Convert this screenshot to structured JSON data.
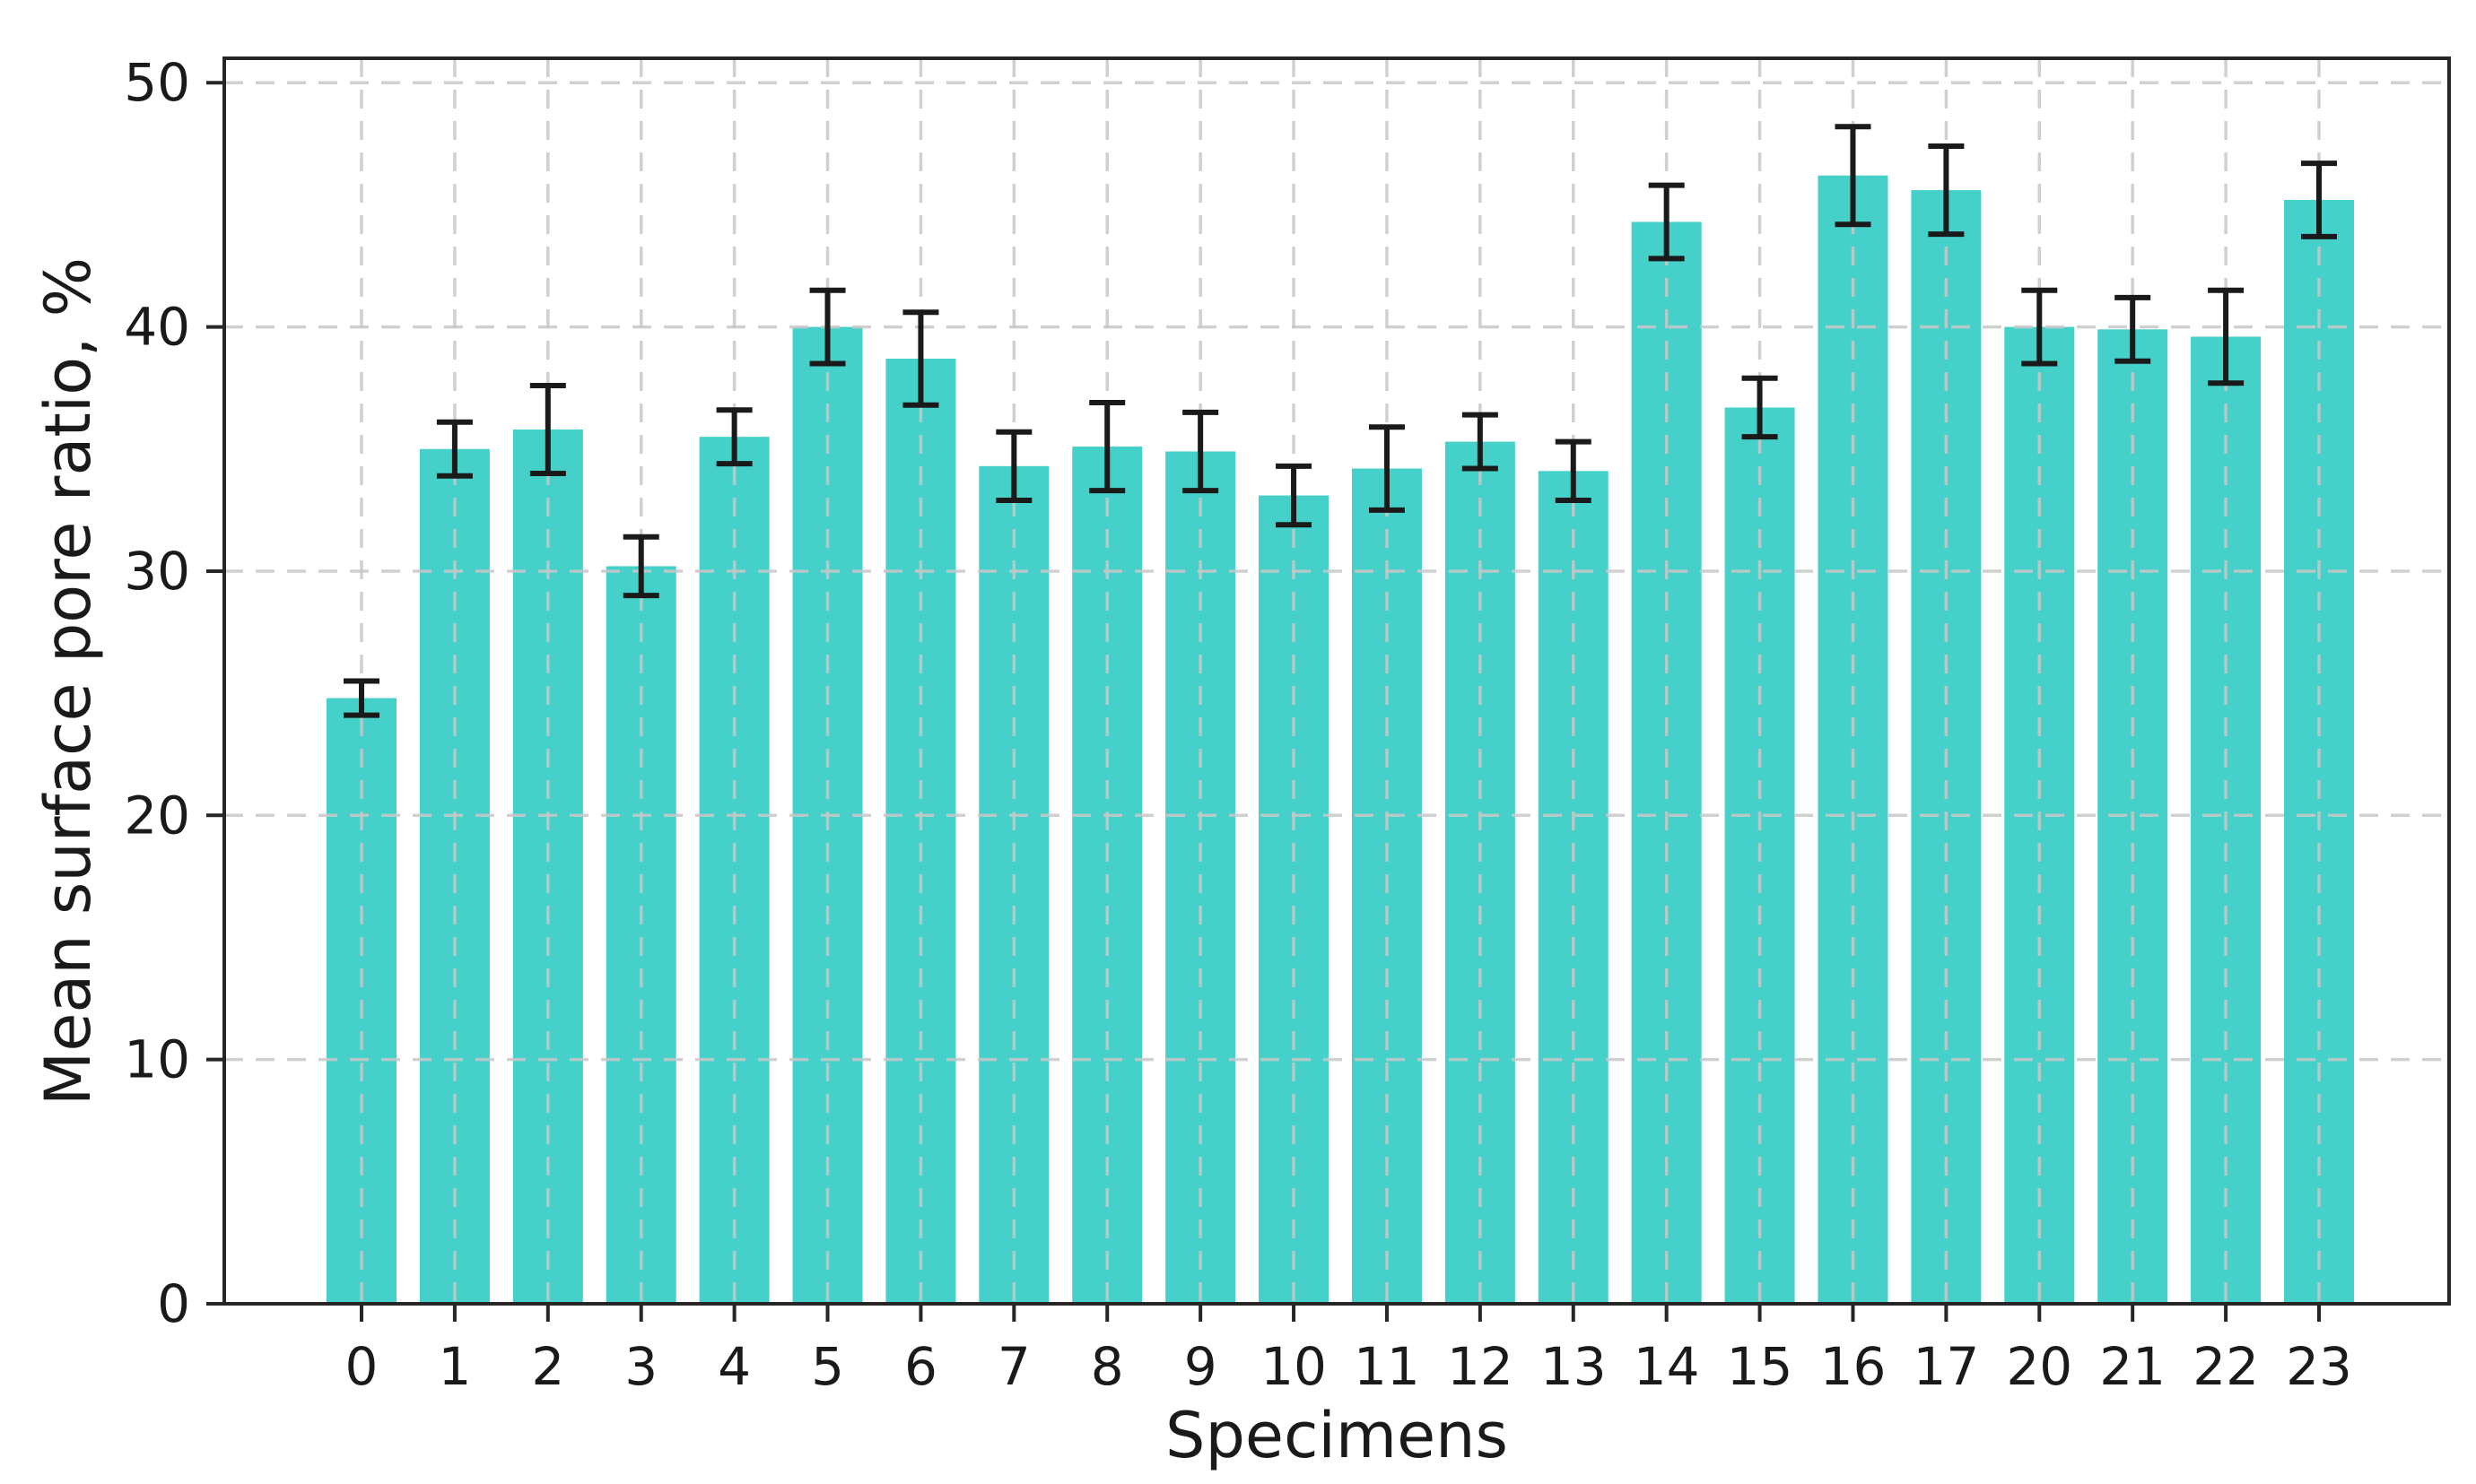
{
  "chart_data": {
    "type": "bar",
    "title": "",
    "xlabel": "Specimens",
    "ylabel": "Mean surface pore ratio, %",
    "categories": [
      "0",
      "1",
      "2",
      "3",
      "4",
      "5",
      "6",
      "7",
      "8",
      "9",
      "10",
      "11",
      "12",
      "13",
      "14",
      "15",
      "16",
      "17",
      "20",
      "21",
      "22",
      "23"
    ],
    "values": [
      24.8,
      35.0,
      35.8,
      30.2,
      35.5,
      40.0,
      38.7,
      34.3,
      35.1,
      34.9,
      33.1,
      34.2,
      35.3,
      34.1,
      44.3,
      36.7,
      46.2,
      45.6,
      40.0,
      39.9,
      39.6,
      45.2
    ],
    "errors": [
      0.7,
      1.1,
      1.8,
      1.2,
      1.1,
      1.5,
      1.9,
      1.4,
      1.8,
      1.6,
      1.2,
      1.7,
      1.1,
      1.2,
      1.5,
      1.2,
      2.0,
      1.8,
      1.5,
      1.3,
      1.9,
      1.5
    ],
    "yticks": [
      0,
      10,
      20,
      30,
      40,
      50
    ],
    "ylim": [
      0,
      51
    ],
    "grid": "dashed-both-axes-on-top",
    "legend": "none",
    "colors": {
      "bar_fill": "#45d1c9",
      "error_bar": "#1a1a1a",
      "grid_line": "#c8c8c8",
      "axis_frame": "#262626",
      "tick_text": "#1a1a1a",
      "background": "#ffffff"
    }
  }
}
